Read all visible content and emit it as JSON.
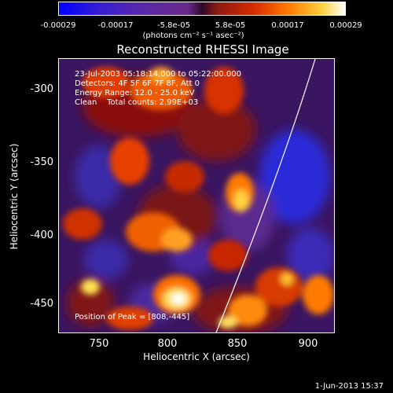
{
  "colorbar": {
    "ticks": [
      "-0.00029",
      "-0.00017",
      "-5.8e-05",
      "5.8e-05",
      "0.00017",
      "0.00029"
    ],
    "units": "(photons cm⁻² s⁻¹ asec⁻²)"
  },
  "title": "Reconstructed RHESSI Image",
  "info": {
    "line1": "23-Jul-2003 05:18:14.000 to 05:22:00.000",
    "line2": "Detectors: 4F 5F 6F 7F 8F, Att 0",
    "line3": "Energy Range: 12.0 - 25.0 keV",
    "line4": "Clean    Total counts: 2.99E+03",
    "peak": "Position of Peak = [808,-445]"
  },
  "axes": {
    "x_ticks": [
      "750",
      "800",
      "850",
      "900"
    ],
    "y_ticks": [
      "-300",
      "-350",
      "-400",
      "-450"
    ],
    "xlabel": "Heliocentric X (arcsec)",
    "ylabel": "Heliocentric Y (arcsec)"
  },
  "footer_date": "1-Jun-2013 15:37"
}
